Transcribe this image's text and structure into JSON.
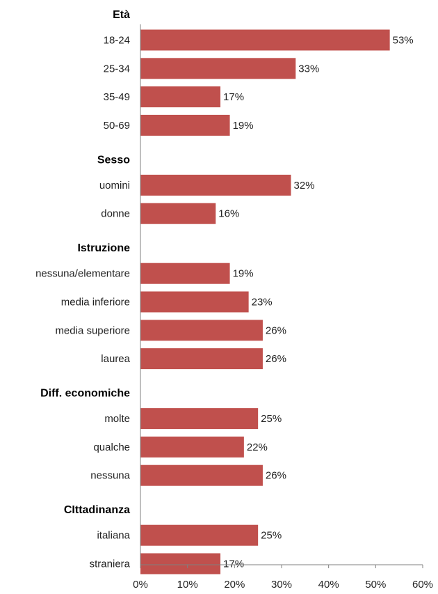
{
  "chart_data": {
    "type": "bar",
    "orientation": "horizontal",
    "bar_color": "#c0504d",
    "xlim": [
      0,
      60
    ],
    "x_ticks": [
      "0%",
      "10%",
      "20%",
      "30%",
      "40%",
      "50%",
      "60%"
    ],
    "value_suffix": "%",
    "groups": [
      {
        "title": "Età",
        "items": [
          {
            "label": "18-24",
            "value": 53
          },
          {
            "label": "25-34",
            "value": 33
          },
          {
            "label": "35-49",
            "value": 17
          },
          {
            "label": "50-69",
            "value": 19
          }
        ]
      },
      {
        "title": "Sesso",
        "items": [
          {
            "label": "uomini",
            "value": 32
          },
          {
            "label": "donne",
            "value": 16
          }
        ]
      },
      {
        "title": "Istruzione",
        "items": [
          {
            "label": "nessuna/elementare",
            "value": 19
          },
          {
            "label": "media inferiore",
            "value": 23
          },
          {
            "label": "media superiore",
            "value": 26
          },
          {
            "label": "laurea",
            "value": 26
          }
        ]
      },
      {
        "title": "Diff. economiche",
        "items": [
          {
            "label": "molte",
            "value": 25
          },
          {
            "label": "qualche",
            "value": 22
          },
          {
            "label": "nessuna",
            "value": 26
          }
        ]
      },
      {
        "title": "CIttadinanza",
        "items": [
          {
            "label": "italiana",
            "value": 25
          },
          {
            "label": "straniera",
            "value": 17
          }
        ]
      }
    ]
  }
}
